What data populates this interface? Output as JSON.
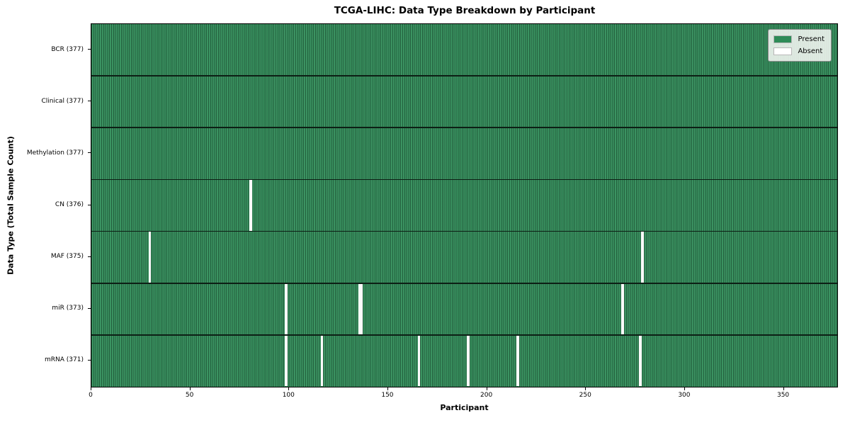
{
  "figure": {
    "title": "TCGA-LIHC: Data Type Breakdown by Participant",
    "xlabel": "Participant",
    "ylabel": "Data Type (Total Sample Count)"
  },
  "legend": {
    "items": [
      {
        "label": "Present",
        "color": "#2e8b57"
      },
      {
        "label": "Absent",
        "color": "#ffffff"
      }
    ]
  },
  "chart_data": {
    "type": "heatmap",
    "title": "TCGA-LIHC: Data Type Breakdown by Participant",
    "xlabel": "Participant",
    "ylabel": "Data Type (Total Sample Count)",
    "x_ticks": [
      0,
      50,
      100,
      150,
      200,
      250,
      300,
      350
    ],
    "x_range": [
      0,
      377
    ],
    "n_participants": 377,
    "grid": "column-separators and row-separator lines",
    "legend_position": "upper right",
    "legend": [
      {
        "label": "Present",
        "color": "#2e8b57"
      },
      {
        "label": "Absent",
        "color": "#ffffff"
      }
    ],
    "colors": {
      "present": "#2e8b57",
      "absent": "#ffffff",
      "separator": "#0d1f15"
    },
    "categories": [
      "BCR (377)",
      "Clinical (377)",
      "Methylation (377)",
      "CN (376)",
      "MAF (375)",
      "miR (373)",
      "mRNA (371)"
    ],
    "rows": [
      {
        "data_type": "BCR",
        "label": "BCR (377)",
        "total_samples": 377,
        "absent_participant_indices": []
      },
      {
        "data_type": "Clinical",
        "label": "Clinical (377)",
        "total_samples": 377,
        "absent_participant_indices": []
      },
      {
        "data_type": "Methylation",
        "label": "Methylation (377)",
        "total_samples": 377,
        "absent_participant_indices": []
      },
      {
        "data_type": "CN",
        "label": "CN (376)",
        "total_samples": 376,
        "absent_participant_indices": [
          80
        ]
      },
      {
        "data_type": "MAF",
        "label": "MAF (375)",
        "total_samples": 375,
        "absent_participant_indices": [
          29,
          278
        ]
      },
      {
        "data_type": "miR",
        "label": "miR (373)",
        "total_samples": 373,
        "absent_participant_indices": [
          98,
          135,
          136,
          268
        ]
      },
      {
        "data_type": "mRNA",
        "label": "mRNA (371)",
        "total_samples": 371,
        "absent_participant_indices": [
          98,
          116,
          165,
          190,
          215,
          277
        ]
      }
    ]
  }
}
